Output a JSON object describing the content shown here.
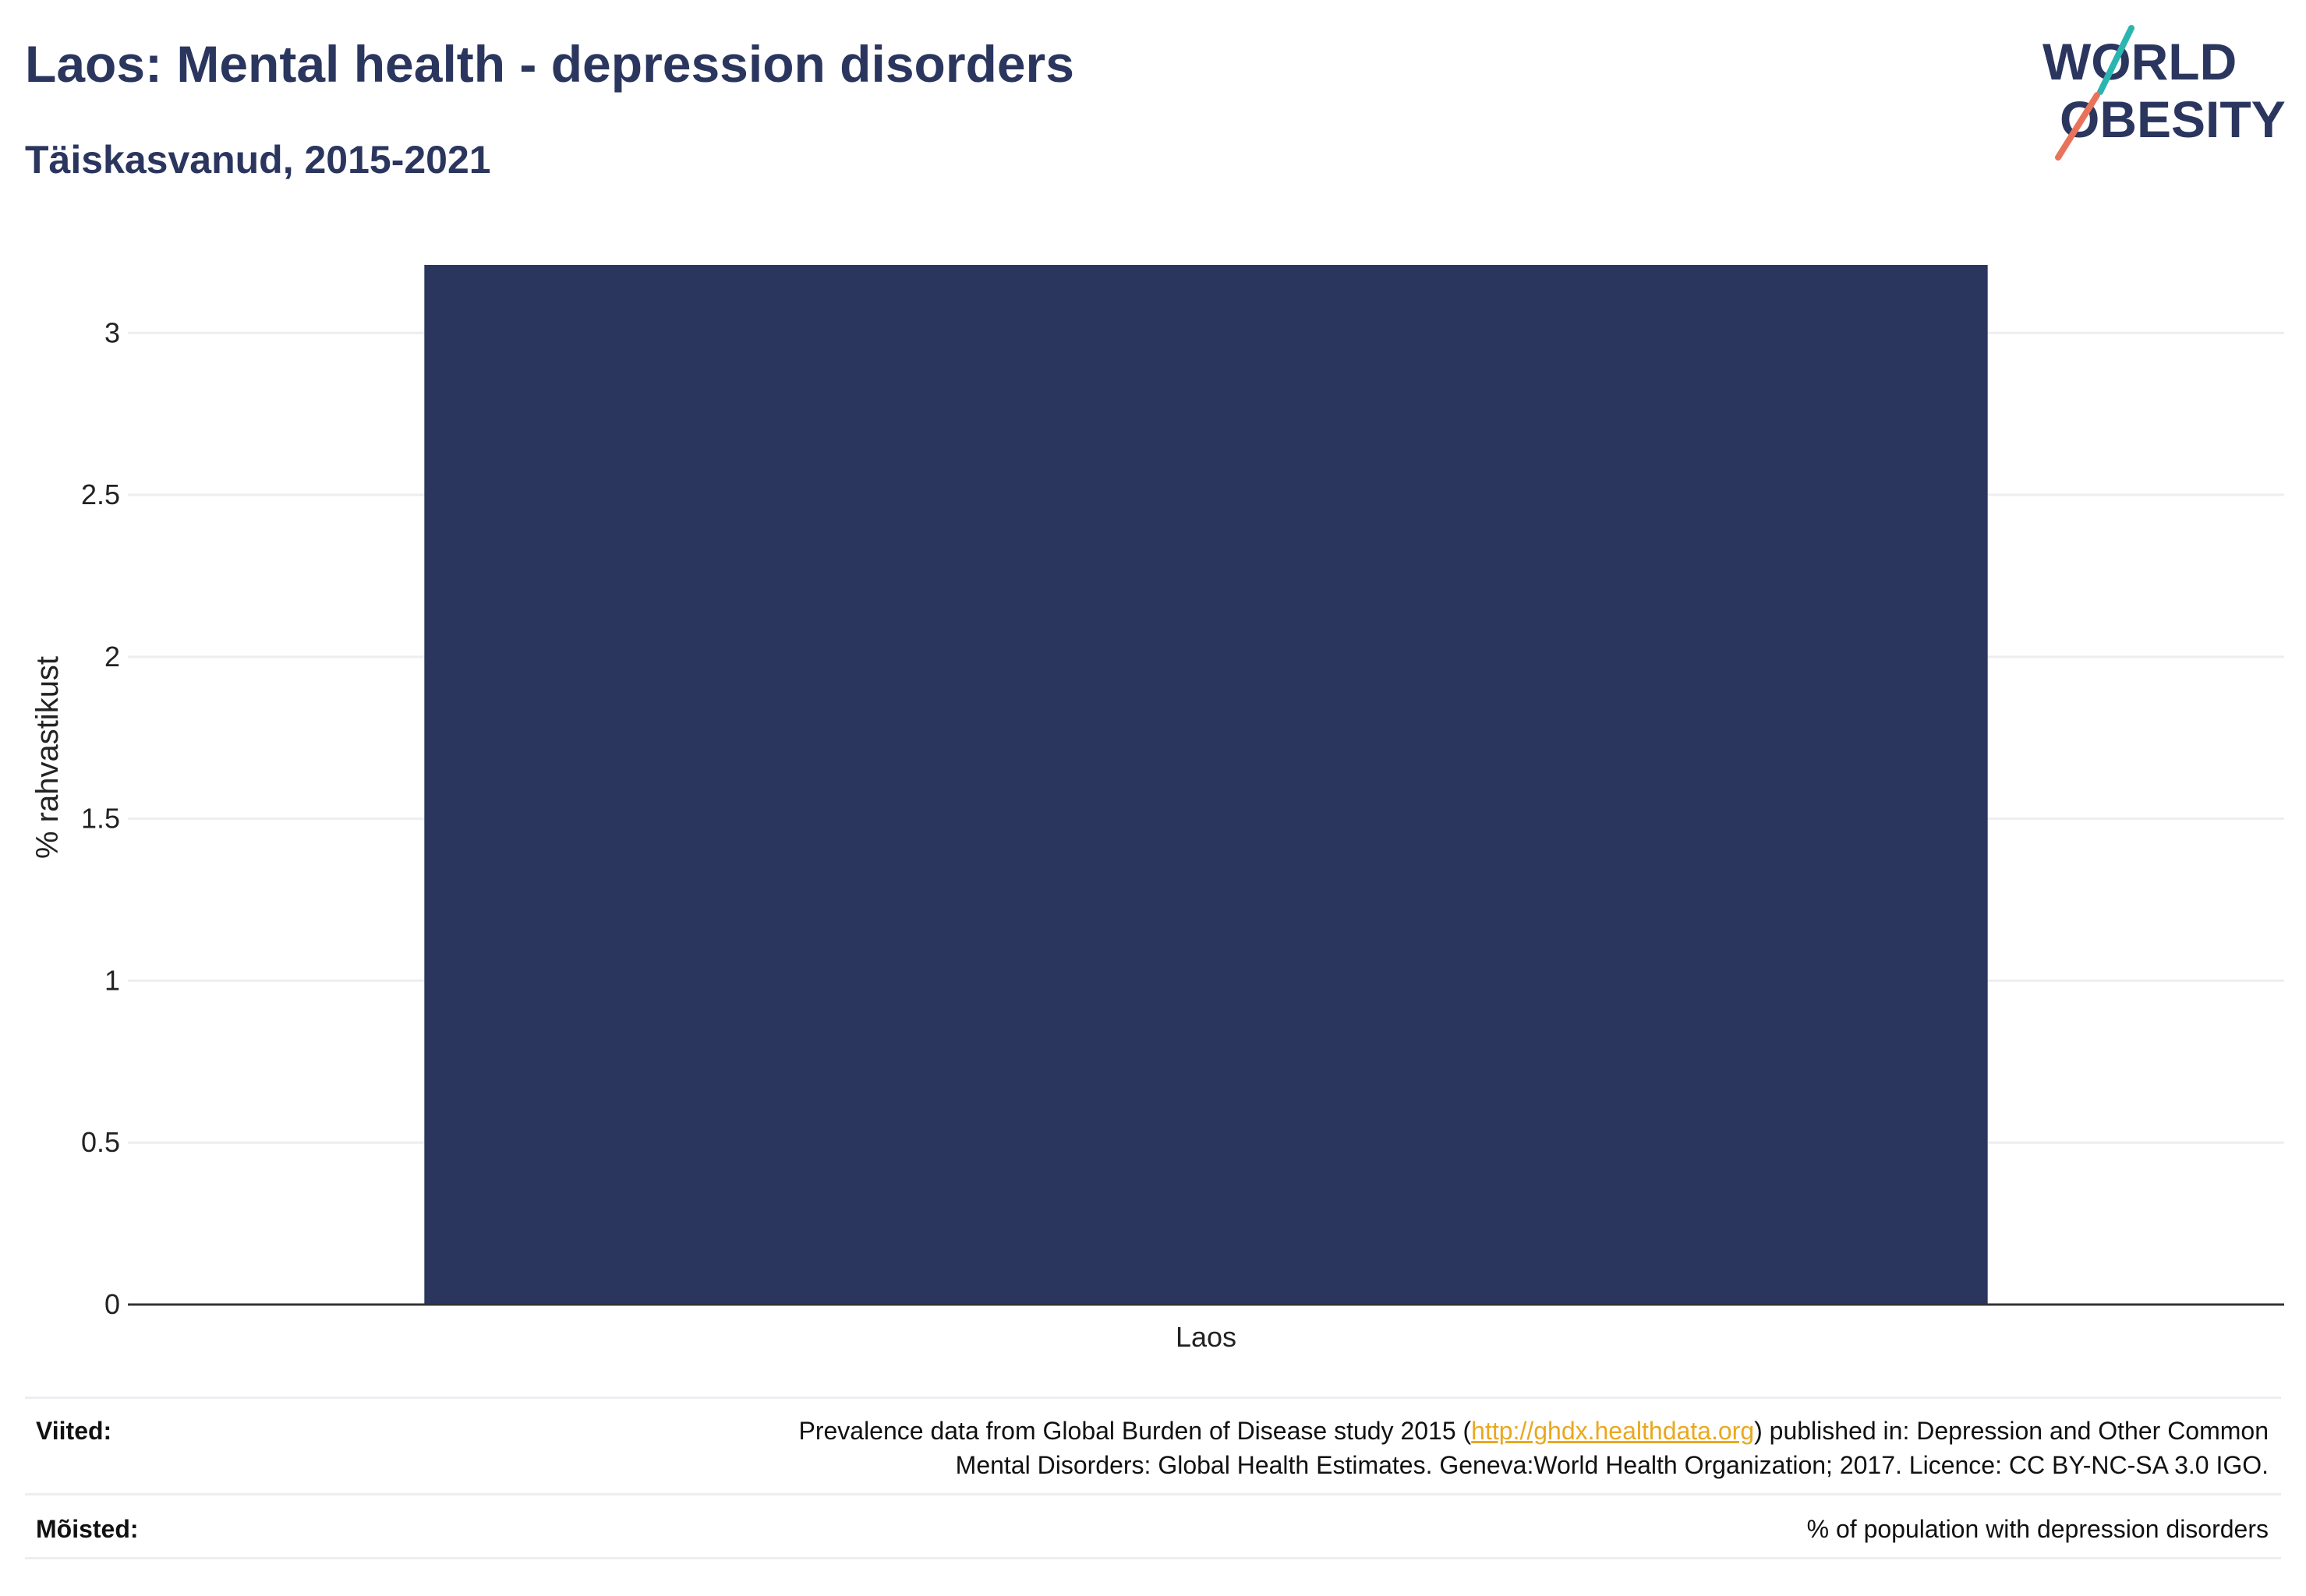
{
  "header": {
    "title": "Laos: Mental health - depression disorders",
    "subtitle": "Täiskasvanud, 2015-2021"
  },
  "logo": {
    "line1": "WORLD",
    "line2": "OBESITY",
    "accent_teal": "#2bb5b0",
    "accent_coral": "#e8735a"
  },
  "chart_data": {
    "type": "bar",
    "categories": [
      "Laos"
    ],
    "values": [
      3.21
    ],
    "title": "Laos: Mental health - depression disorders",
    "subtitle": "Täiskasvanud, 2015-2021",
    "xlabel": "",
    "ylabel": "% rahvastikust",
    "ylim": [
      0,
      3.21
    ],
    "yticks": [
      0,
      0.5,
      1,
      1.5,
      2,
      2.5,
      3
    ],
    "ytick_labels": [
      "0",
      "0.5",
      "1",
      "1.5",
      "2",
      "2.5",
      "3"
    ],
    "grid": true,
    "legend": "none",
    "bar_color": "#2b365f"
  },
  "footer": {
    "references_label": "Viited:",
    "references_pre": "Prevalence data from Global Burden of Disease study 2015 (",
    "references_link": "http://ghdx.healthdata.org",
    "references_post": ") published in: Depression and Other Common",
    "references_line2": "Mental Disorders: Global Health Estimates. Geneva:World Health Organization; 2017. Licence: CC BY-NC-SA 3.0 IGO.",
    "definitions_label": "Mõisted:",
    "definitions_text": "% of population with depression disorders"
  }
}
